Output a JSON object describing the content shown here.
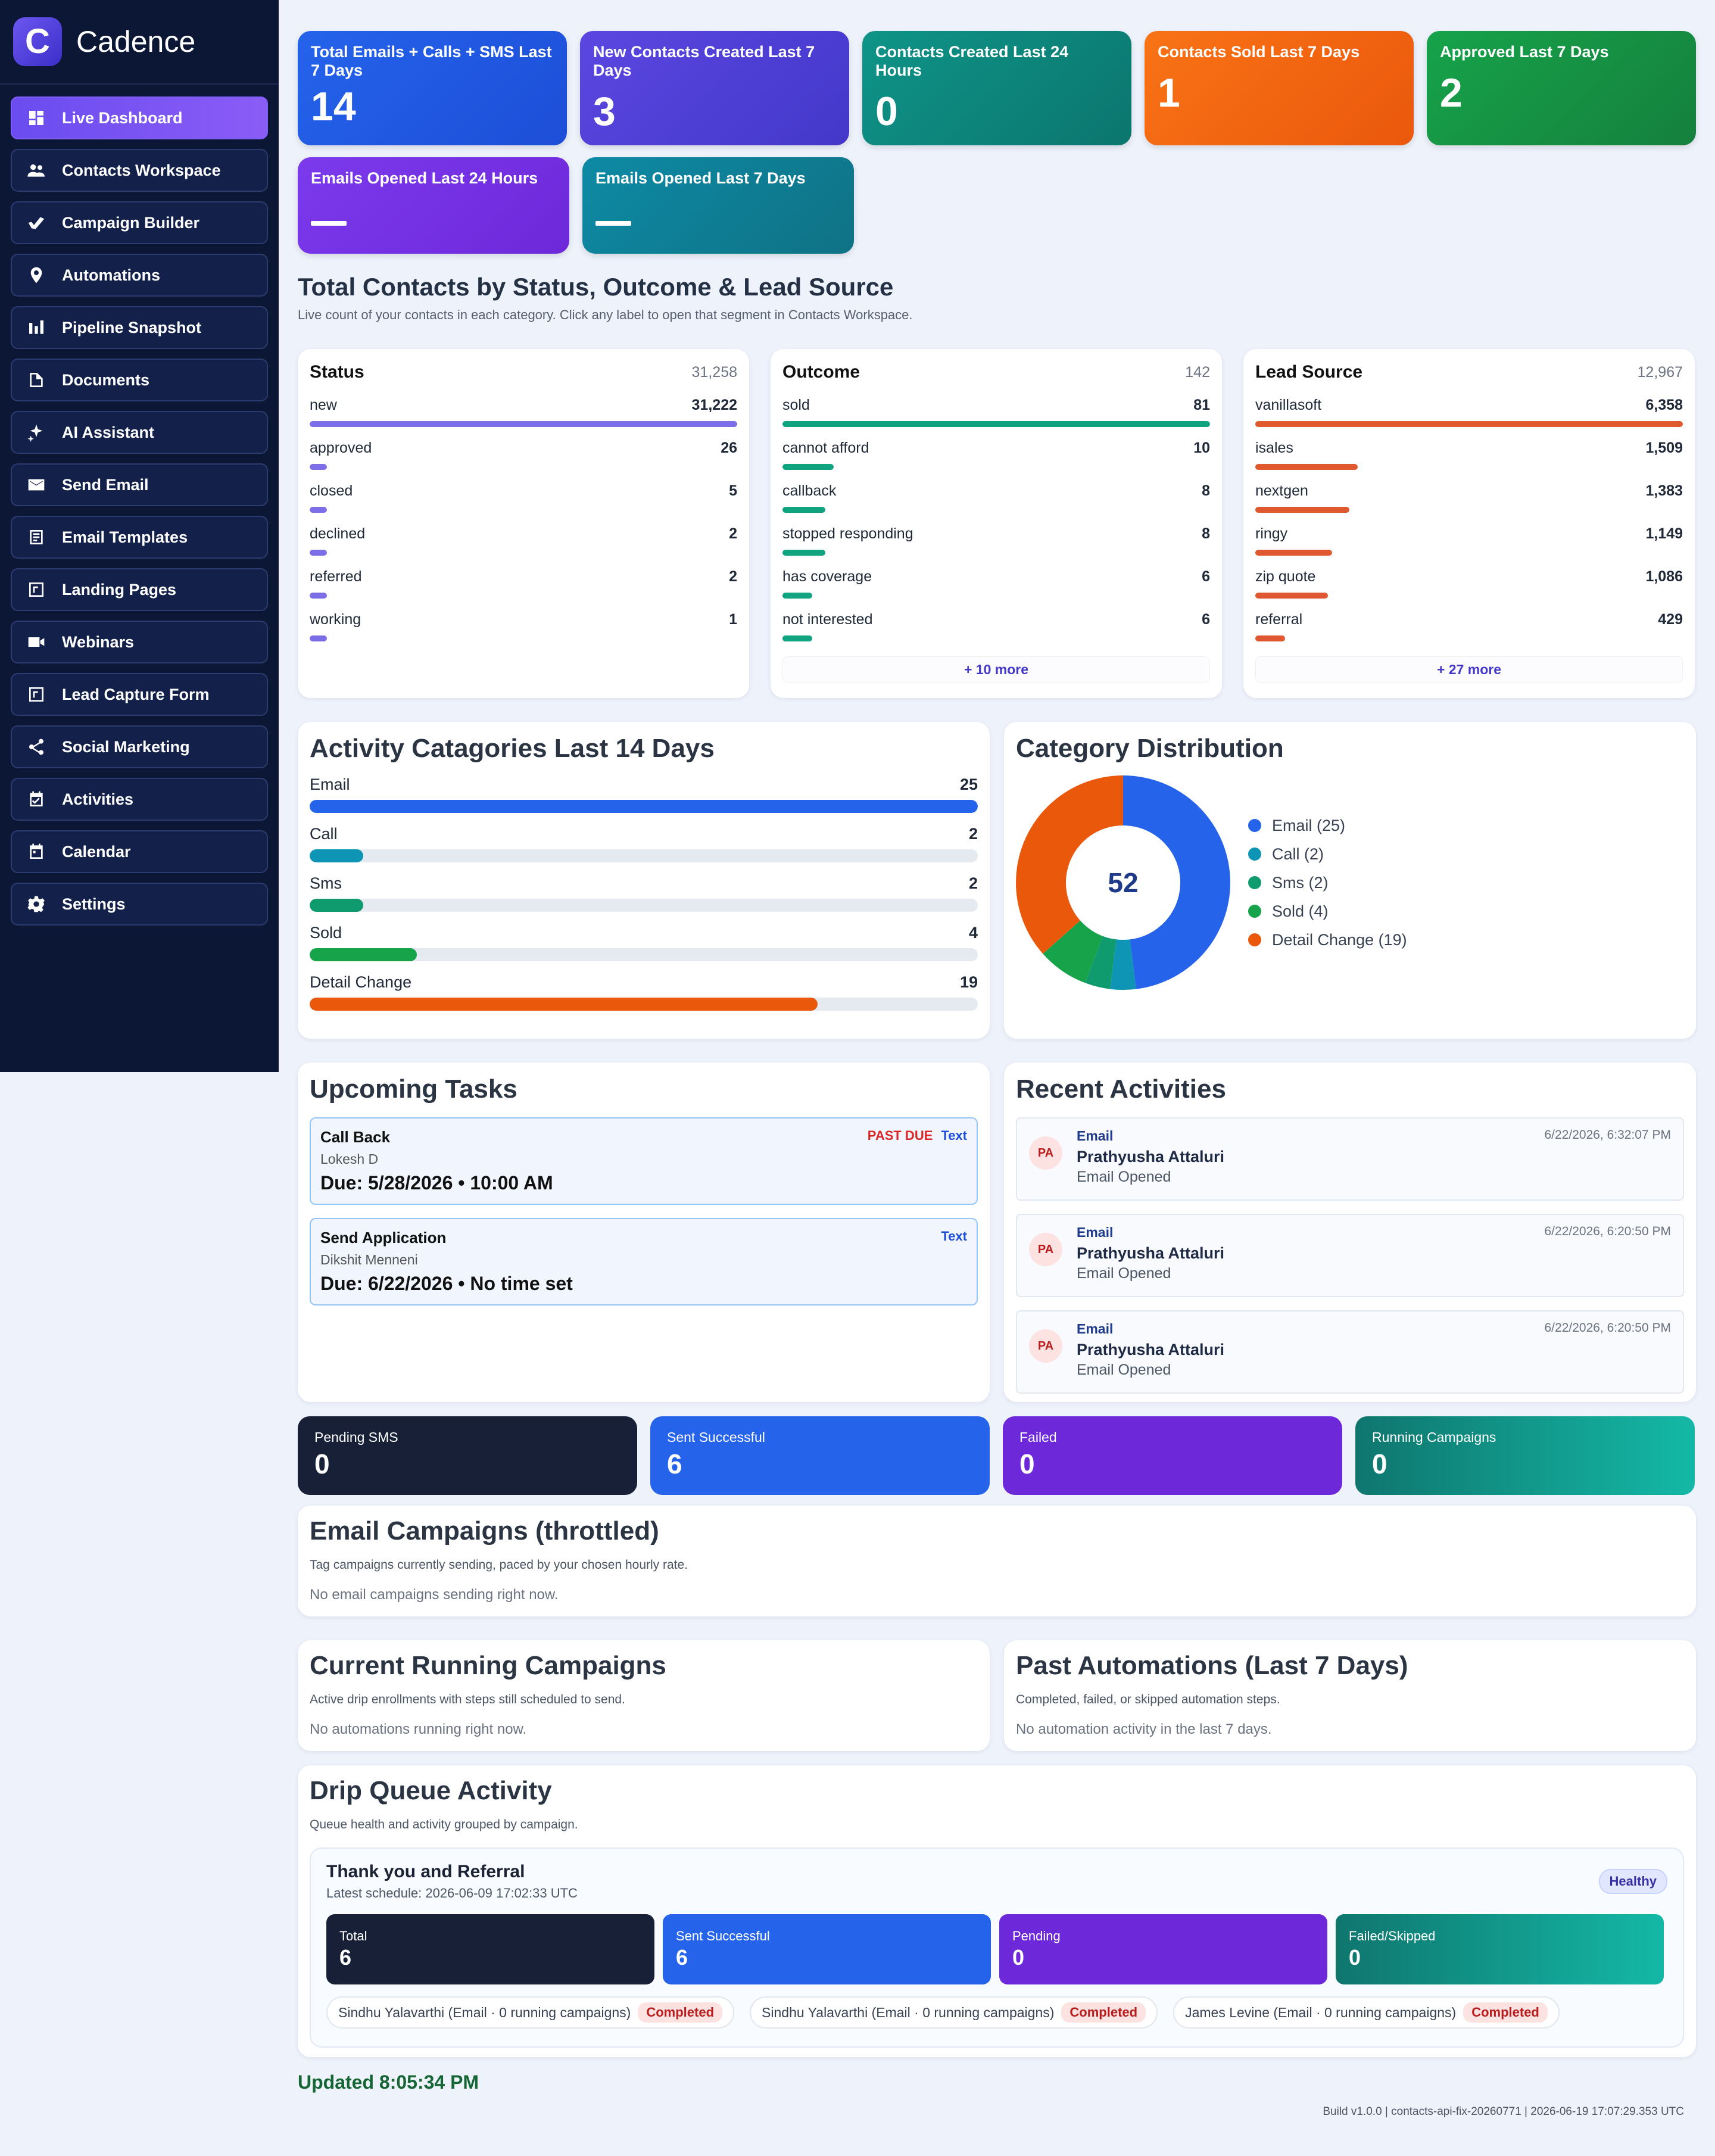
{
  "app": {
    "name": "Cadence",
    "logo_letter": "C"
  },
  "sidebar": {
    "items": [
      {
        "label": "Live Dashboard",
        "icon": "dashboard-icon"
      },
      {
        "label": "Contacts Workspace",
        "icon": "people-icon"
      },
      {
        "label": "Campaign Builder",
        "icon": "campaign-icon"
      },
      {
        "label": "Automations",
        "icon": "pin-icon"
      },
      {
        "label": "Pipeline Snapshot",
        "icon": "bar-chart-icon"
      },
      {
        "label": "Documents",
        "icon": "document-icon"
      },
      {
        "label": "AI Assistant",
        "icon": "sparkle-icon"
      },
      {
        "label": "Send Email",
        "icon": "mail-icon"
      },
      {
        "label": "Email Templates",
        "icon": "template-icon"
      },
      {
        "label": "Landing Pages",
        "icon": "landing-icon"
      },
      {
        "label": "Webinars",
        "icon": "video-icon"
      },
      {
        "label": "Lead Capture Form",
        "icon": "form-icon"
      },
      {
        "label": "Social Marketing",
        "icon": "share-icon"
      },
      {
        "label": "Activities",
        "icon": "calendar-check-icon"
      },
      {
        "label": "Calendar",
        "icon": "calendar-icon"
      },
      {
        "label": "Settings",
        "icon": "gear-icon"
      }
    ]
  },
  "kpis": [
    {
      "label": "Total Emails + Calls + SMS Last 7 Days",
      "value": "14"
    },
    {
      "label": "New Contacts Created Last 7 Days",
      "value": "3"
    },
    {
      "label": "Contacts Created Last 24 Hours",
      "value": "0"
    },
    {
      "label": "Contacts Sold Last 7 Days",
      "value": "1"
    },
    {
      "label": "Approved Last 7 Days",
      "value": "2"
    },
    {
      "label": "Emails Opened Last 24 Hours",
      "value": "—"
    },
    {
      "label": "Emails Opened Last 7 Days",
      "value": "—"
    }
  ],
  "totals": {
    "title": "Total Contacts by Status, Outcome & Lead Source",
    "subtitle": "Live count of your contacts in each category. Click any label to open that segment in Contacts Workspace.",
    "status": {
      "title": "Status",
      "total": "31,258",
      "color": "#7c6ee6",
      "rows": [
        {
          "label": "new",
          "value": "31,222",
          "fraction": 1.0
        },
        {
          "label": "approved",
          "value": "26",
          "fraction": 0.04
        },
        {
          "label": "closed",
          "value": "5",
          "fraction": 0.04
        },
        {
          "label": "declined",
          "value": "2",
          "fraction": 0.04
        },
        {
          "label": "referred",
          "value": "2",
          "fraction": 0.04
        },
        {
          "label": "working",
          "value": "1",
          "fraction": 0.04
        }
      ]
    },
    "outcome": {
      "title": "Outcome",
      "total": "142",
      "color": "#10a37f",
      "more": "+ 10 more",
      "rows": [
        {
          "label": "sold",
          "value": "81",
          "fraction": 1.0
        },
        {
          "label": "cannot afford",
          "value": "10",
          "fraction": 0.12
        },
        {
          "label": "callback",
          "value": "8",
          "fraction": 0.1
        },
        {
          "label": "stopped responding",
          "value": "8",
          "fraction": 0.1
        },
        {
          "label": "has coverage",
          "value": "6",
          "fraction": 0.07
        },
        {
          "label": "not interested",
          "value": "6",
          "fraction": 0.07
        }
      ]
    },
    "lead_source": {
      "title": "Lead Source",
      "total": "12,967",
      "color": "#e0582f",
      "more": "+ 27 more",
      "rows": [
        {
          "label": "vanillasoft",
          "value": "6,358",
          "fraction": 1.0
        },
        {
          "label": "isales",
          "value": "1,509",
          "fraction": 0.24
        },
        {
          "label": "nextgen",
          "value": "1,383",
          "fraction": 0.22
        },
        {
          "label": "ringy",
          "value": "1,149",
          "fraction": 0.18
        },
        {
          "label": "zip quote",
          "value": "1,086",
          "fraction": 0.17
        },
        {
          "label": "referral",
          "value": "429",
          "fraction": 0.07
        }
      ]
    }
  },
  "activity": {
    "title": "Activity Catagories Last 14 Days",
    "rows": [
      {
        "label": "Email",
        "value": "25",
        "fraction": 1.0,
        "color": "#2563eb"
      },
      {
        "label": "Call",
        "value": "2",
        "fraction": 0.08,
        "color": "#0e94b5"
      },
      {
        "label": "Sms",
        "value": "2",
        "fraction": 0.08,
        "color": "#0f9b6e"
      },
      {
        "label": "Sold",
        "value": "4",
        "fraction": 0.16,
        "color": "#16a34a"
      },
      {
        "label": "Detail Change",
        "value": "19",
        "fraction": 0.76,
        "color": "#ea580c"
      }
    ]
  },
  "distribution": {
    "title": "Category Distribution",
    "total": "52",
    "legend": [
      "Email (25)",
      "Call (2)",
      "Sms (2)",
      "Sold (4)",
      "Detail Change (19)"
    ]
  },
  "chart_data": {
    "type": "pie",
    "title": "Category Distribution",
    "categories": [
      "Email",
      "Call",
      "Sms",
      "Sold",
      "Detail Change"
    ],
    "values": [
      25,
      2,
      2,
      4,
      19
    ],
    "colors": [
      "#2563eb",
      "#0e94b5",
      "#0f9b6e",
      "#16a34a",
      "#ea580c"
    ],
    "center_label": "52",
    "legend_placement": "right"
  },
  "tasks": {
    "title": "Upcoming Tasks",
    "items": [
      {
        "title": "Call Back",
        "status": "PAST DUE",
        "type": "Text",
        "who": "Lokesh D",
        "due": "Due: 5/28/2026 • 10:00 AM"
      },
      {
        "title": "Send Application",
        "status": "",
        "type": "Text",
        "who": "Dikshit Menneni",
        "due": "Due: 6/22/2026 • No time set"
      }
    ]
  },
  "recent": {
    "title": "Recent Activities",
    "items": [
      {
        "initials": "PA",
        "kind": "Email",
        "date": "6/22/2026, 6:32:07 PM",
        "name": "Prathyusha Attaluri",
        "event": "Email Opened"
      },
      {
        "initials": "PA",
        "kind": "Email",
        "date": "6/22/2026, 6:20:50 PM",
        "name": "Prathyusha Attaluri",
        "event": "Email Opened"
      },
      {
        "initials": "PA",
        "kind": "Email",
        "date": "6/22/2026, 6:20:50 PM",
        "name": "Prathyusha Attaluri",
        "event": "Email Opened"
      }
    ]
  },
  "sms": [
    {
      "label": "Pending SMS",
      "value": "0"
    },
    {
      "label": "Sent Successful",
      "value": "6"
    },
    {
      "label": "Failed",
      "value": "0"
    },
    {
      "label": "Running Campaigns",
      "value": "0"
    }
  ],
  "email_campaigns": {
    "title": "Email Campaigns (throttled)",
    "subtitle": "Tag campaigns currently sending, paced by your chosen hourly rate.",
    "empty": "No email campaigns sending right now."
  },
  "running": {
    "title": "Current Running Campaigns",
    "subtitle": "Active drip enrollments with steps still scheduled to send.",
    "empty": "No automations running right now."
  },
  "past_automations": {
    "title": "Past Automations (Last 7 Days)",
    "subtitle": "Completed, failed, or skipped automation steps.",
    "empty": "No automation activity in the last 7 days."
  },
  "drip": {
    "title": "Drip Queue Activity",
    "subtitle": "Queue health and activity grouped by campaign.",
    "campaign": {
      "name": "Thank you and Referral",
      "schedule": "Latest schedule: 2026-06-09 17:02:33 UTC",
      "badge": "Healthy",
      "stats": [
        {
          "label": "Total",
          "value": "6"
        },
        {
          "label": "Sent Successful",
          "value": "6"
        },
        {
          "label": "Pending",
          "value": "0"
        },
        {
          "label": "Failed/Skipped",
          "value": "0"
        }
      ],
      "pills": [
        {
          "text": "Sindhu Yalavarthi (Email · 0 running campaigns)",
          "status": "Completed"
        },
        {
          "text": "Sindhu Yalavarthi (Email · 0 running campaigns)",
          "status": "Completed"
        },
        {
          "text": "James Levine (Email · 0 running campaigns)",
          "status": "Completed"
        }
      ]
    }
  },
  "footer": {
    "updated": "Updated 8:05:34 PM",
    "build": "Build v1.0.0 | contacts-api-fix-20260771 | 2026-06-19 17:07:29.353 UTC"
  }
}
